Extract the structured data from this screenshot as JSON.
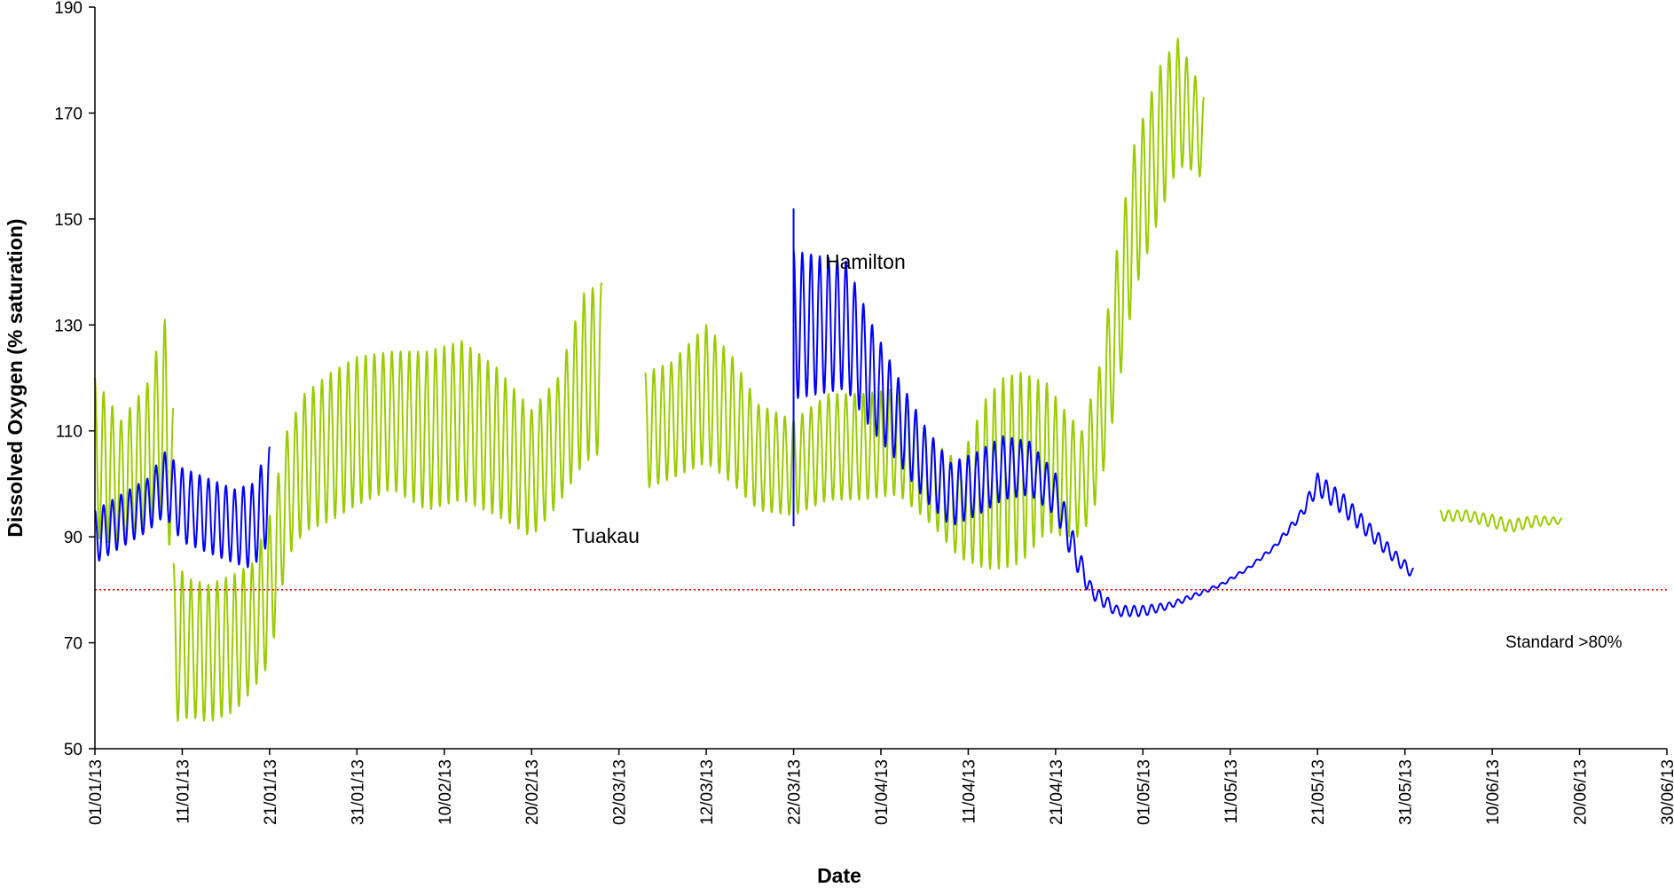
{
  "chart_data": {
    "type": "line",
    "title": "",
    "xlabel": "Date",
    "ylabel": "Dissolved Oxygen (% saturation)",
    "xlim": [
      "2013-01-01",
      "2013-06-30"
    ],
    "ylim": [
      50,
      190
    ],
    "x_tick_labels": [
      "01/01/13",
      "11/01/13",
      "21/01/13",
      "31/01/13",
      "10/02/13",
      "20/02/13",
      "02/03/13",
      "12/03/13",
      "22/03/13",
      "01/04/13",
      "11/04/13",
      "21/04/13",
      "01/05/13",
      "11/05/13",
      "21/05/13",
      "31/05/13",
      "10/06/13",
      "20/06/13",
      "30/06/13"
    ],
    "y_tick_labels": [
      "50",
      "70",
      "90",
      "110",
      "130",
      "150",
      "170",
      "190"
    ],
    "grid": false,
    "reference_line": {
      "value": 80,
      "color": "#ff0000",
      "style": "dotted",
      "label": "Standard >80%"
    },
    "annotations": [
      {
        "text": "Tuakau",
        "x": "2013-02-25",
        "y": 90
      },
      {
        "text": "Hamilton",
        "x": "2013-03-26",
        "y": 142
      }
    ],
    "series": [
      {
        "color": "#99cc00",
        "diurnal": true,
        "segments": [
          {
            "points": [
              [
                "2013-01-01",
                105
              ],
              [
                "2013-01-04",
                100
              ],
              [
                "2013-01-07",
                105
              ],
              [
                "2013-01-09",
                113
              ],
              [
                "2013-01-10",
                98
              ]
            ],
            "amp": [
              15,
              12,
              14,
              18,
              16
            ]
          },
          {
            "points": [
              [
                "2013-01-10",
                70
              ],
              [
                "2013-01-12",
                69
              ],
              [
                "2013-01-14",
                68
              ],
              [
                "2013-01-17",
                70
              ],
              [
                "2013-01-19",
                73
              ],
              [
                "2013-01-21",
                80
              ],
              [
                "2013-01-23",
                98
              ],
              [
                "2013-01-25",
                104
              ],
              [
                "2013-01-28",
                107
              ],
              [
                "2013-01-31",
                110
              ],
              [
                "2013-02-04",
                112
              ],
              [
                "2013-02-08",
                110
              ],
              [
                "2013-02-12",
                112
              ],
              [
                "2013-02-16",
                108
              ],
              [
                "2013-02-20",
                102
              ],
              [
                "2013-02-23",
                108
              ],
              [
                "2013-02-26",
                120
              ],
              [
                "2013-02-28",
                122
              ]
            ],
            "amp": [
              15,
              13,
              13,
              13,
              12,
              14,
              12,
              13,
              14,
              14,
              13,
              15,
              15,
              14,
              12,
              12,
              16,
              16
            ]
          },
          {
            "points": [
              [
                "2013-03-05",
                110
              ],
              [
                "2013-03-08",
                112
              ],
              [
                "2013-03-12",
                117
              ],
              [
                "2013-03-15",
                112
              ],
              [
                "2013-03-18",
                105
              ],
              [
                "2013-03-22",
                103
              ],
              [
                "2013-03-26",
                107
              ],
              [
                "2013-03-30",
                107
              ],
              [
                "2013-04-03",
                108
              ],
              [
                "2013-04-07",
                100
              ],
              [
                "2013-04-10",
                95
              ],
              [
                "2013-04-13",
                100
              ],
              [
                "2013-04-15",
                102
              ],
              [
                "2013-04-17",
                103
              ],
              [
                "2013-04-20",
                105
              ],
              [
                "2013-04-22",
                102
              ],
              [
                "2013-04-24",
                100
              ],
              [
                "2013-04-26",
                110
              ],
              [
                "2013-04-28",
                130
              ],
              [
                "2013-04-30",
                150
              ],
              [
                "2013-05-03",
                165
              ],
              [
                "2013-05-05",
                172
              ],
              [
                "2013-05-07",
                168
              ],
              [
                "2013-05-08",
                165
              ]
            ],
            "amp": [
              11,
              11,
              13,
              12,
              10,
              9,
              10,
              10,
              10,
              8,
              9,
              16,
              18,
              18,
              14,
              12,
              10,
              12,
              14,
              14,
              14,
              12,
              9,
              8
            ]
          },
          {
            "points": [
              [
                "2013-06-04",
                94
              ],
              [
                "2013-06-07",
                94
              ],
              [
                "2013-06-10",
                93
              ],
              [
                "2013-06-12",
                92
              ],
              [
                "2013-06-15",
                93
              ],
              [
                "2013-06-18",
                93
              ]
            ],
            "amp": [
              1,
              1,
              1.2,
              1.2,
              1,
              0.5
            ]
          }
        ]
      },
      {
        "color": "#0000ff",
        "diurnal": true,
        "segments": [
          {
            "points": [
              [
                "2013-01-01",
                90
              ],
              [
                "2013-01-04",
                93
              ],
              [
                "2013-01-07",
                96
              ],
              [
                "2013-01-09",
                100
              ],
              [
                "2013-01-11",
                96
              ],
              [
                "2013-01-14",
                94
              ],
              [
                "2013-01-17",
                92
              ],
              [
                "2013-01-19",
                92
              ],
              [
                "2013-01-21",
                98
              ]
            ],
            "amp": [
              5,
              5,
              5,
              6,
              7,
              7,
              7,
              8,
              9
            ]
          },
          {
            "points": [
              [
                "2013-03-22",
                130
              ],
              [
                "2013-03-25",
                130
              ],
              [
                "2013-03-28",
                130
              ],
              [
                "2013-03-31",
                120
              ],
              [
                "2013-04-03",
                112
              ],
              [
                "2013-04-06",
                104
              ],
              [
                "2013-04-09",
                98
              ],
              [
                "2013-04-12",
                100
              ],
              [
                "2013-04-15",
                103
              ],
              [
                "2013-04-18",
                103
              ],
              [
                "2013-04-21",
                98
              ],
              [
                "2013-04-23",
                88
              ],
              [
                "2013-04-25",
                80
              ],
              [
                "2013-04-28",
                76
              ],
              [
                "2013-05-01",
                76
              ],
              [
                "2013-05-04",
                77
              ],
              [
                "2013-05-07",
                79
              ],
              [
                "2013-05-10",
                81
              ],
              [
                "2013-05-13",
                84
              ],
              [
                "2013-05-16",
                88
              ],
              [
                "2013-05-19",
                94
              ],
              [
                "2013-05-21",
                100
              ],
              [
                "2013-05-24",
                96
              ],
              [
                "2013-05-27",
                91
              ],
              [
                "2013-05-30",
                86
              ],
              [
                "2013-06-01",
                83
              ]
            ],
            "amp": [
              14,
              13,
              12,
              10,
              8,
              7,
              6,
              6,
              6,
              5,
              4,
              3,
              1.5,
              1,
              1,
              0.6,
              0.4,
              0.3,
              0.3,
              0.4,
              0.8,
              2,
              2,
              1.5,
              1.2,
              1
            ]
          }
        ],
        "spikes": [
          [
            "2013-03-22",
            152
          ],
          [
            "2013-03-22",
            92
          ]
        ]
      }
    ]
  }
}
